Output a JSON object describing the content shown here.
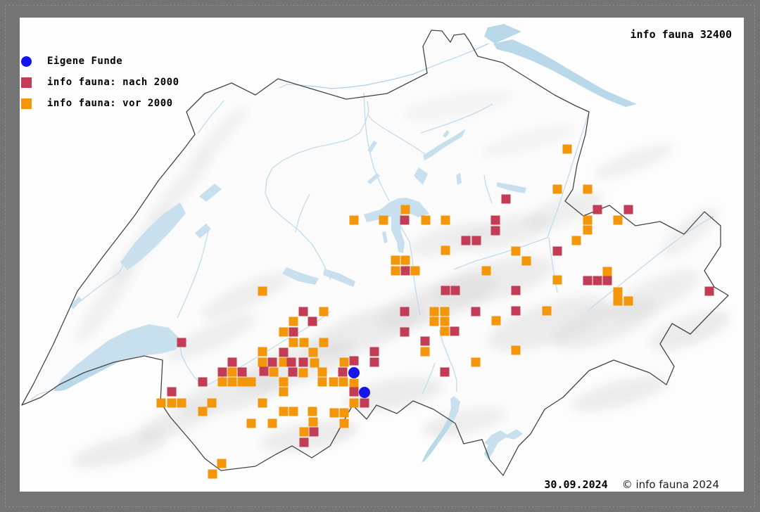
{
  "title": {
    "catalog_label": "info fauna 32400"
  },
  "legend": {
    "items": [
      {
        "label": "Eigene Funde",
        "color": "#1414eb",
        "shape": "circle"
      },
      {
        "label": "info fauna: nach 2000",
        "color": "#c23c55",
        "shape": "square"
      },
      {
        "label": "info fauna: vor 2000",
        "color": "#f4960a",
        "shape": "square"
      }
    ]
  },
  "footer": {
    "date": "30.09.2024",
    "copyright": "© info fauna 2024"
  },
  "map": {
    "region": "Switzerland",
    "frame_color": "#747474",
    "canvas_color": "#fdfdfd",
    "lake_color": "#b9d9ea",
    "river_color": "#aed2e8",
    "border_color": "#454545",
    "relief_color": "#d2d2d2"
  },
  "chart_data": {
    "type": "scatter",
    "title": "info fauna 32400 — species distribution map of Switzerland",
    "coordinate_system": "screen pixels of 1080x728 screenshot, origin top-left",
    "marker_size_px": 13,
    "circle_radius_px": 8,
    "series": [
      {
        "name": "Eigene Funde",
        "key": "eigene-funde",
        "shape": "circle",
        "color": "#1414eb",
        "points": [
          [
            503,
            530
          ],
          [
            518,
            558
          ]
        ]
      },
      {
        "name": "info fauna: nach 2000",
        "key": "nach-2000",
        "shape": "square",
        "color": "#c23c55",
        "points": [
          [
            575,
            313
          ],
          [
            704,
            313
          ],
          [
            704,
            328
          ],
          [
            662,
            342
          ],
          [
            677,
            342
          ],
          [
            576,
            385
          ],
          [
            719,
            283
          ],
          [
            849,
            298
          ],
          [
            893,
            298
          ],
          [
            792,
            357
          ],
          [
            633,
            413
          ],
          [
            647,
            413
          ],
          [
            733,
            413
          ],
          [
            431,
            443
          ],
          [
            575,
            443
          ],
          [
            676,
            443
          ],
          [
            733,
            442
          ],
          [
            444,
            457
          ],
          [
            417,
            472
          ],
          [
            575,
            472
          ],
          [
            646,
            471
          ],
          [
            604,
            485
          ],
          [
            258,
            487
          ],
          [
            403,
            501
          ],
          [
            532,
            500
          ],
          [
            503,
            513
          ],
          [
            532,
            515
          ],
          [
            330,
            515
          ],
          [
            387,
            515
          ],
          [
            414,
            515
          ],
          [
            431,
            515
          ],
          [
            316,
            529
          ],
          [
            344,
            529
          ],
          [
            375,
            528
          ],
          [
            416,
            529
          ],
          [
            487,
            529
          ],
          [
            632,
            529
          ],
          [
            288,
            543
          ],
          [
            244,
            557
          ],
          [
            503,
            557
          ],
          [
            518,
            573
          ],
          [
            446,
            614
          ],
          [
            432,
            629
          ],
          [
            835,
            399
          ],
          [
            849,
            399
          ],
          [
            863,
            399
          ],
          [
            1008,
            414
          ]
        ]
      },
      {
        "name": "info fauna: vor 2000",
        "key": "vor-2000",
        "shape": "square",
        "color": "#f4960a",
        "points": [
          [
            503,
            313
          ],
          [
            545,
            313
          ],
          [
            576,
            298
          ],
          [
            605,
            313
          ],
          [
            633,
            313
          ],
          [
            633,
            356
          ],
          [
            562,
            370
          ],
          [
            576,
            370
          ],
          [
            562,
            385
          ],
          [
            590,
            385
          ],
          [
            691,
            385
          ],
          [
            373,
            414
          ],
          [
            806,
            212
          ],
          [
            792,
            269
          ],
          [
            835,
            269
          ],
          [
            835,
            313
          ],
          [
            878,
            313
          ],
          [
            835,
            327
          ],
          [
            819,
            342
          ],
          [
            733,
            357
          ],
          [
            748,
            371
          ],
          [
            863,
            386
          ],
          [
            792,
            398
          ],
          [
            878,
            415
          ],
          [
            878,
            428
          ],
          [
            893,
            428
          ],
          [
            460,
            443
          ],
          [
            617,
            443
          ],
          [
            632,
            443
          ],
          [
            417,
            457
          ],
          [
            617,
            457
          ],
          [
            632,
            457
          ],
          [
            403,
            472
          ],
          [
            632,
            471
          ],
          [
            417,
            487
          ],
          [
            432,
            487
          ],
          [
            460,
            487
          ],
          [
            373,
            500
          ],
          [
            445,
            501
          ],
          [
            604,
            500
          ],
          [
            373,
            515
          ],
          [
            403,
            515
          ],
          [
            447,
            516
          ],
          [
            489,
            515
          ],
          [
            705,
            456
          ],
          [
            733,
            498
          ],
          [
            777,
            442
          ],
          [
            676,
            515
          ],
          [
            330,
            529
          ],
          [
            389,
            529
          ],
          [
            431,
            530
          ],
          [
            458,
            529
          ],
          [
            316,
            543
          ],
          [
            330,
            543
          ],
          [
            344,
            543
          ],
          [
            357,
            543
          ],
          [
            403,
            543
          ],
          [
            458,
            543
          ],
          [
            474,
            543
          ],
          [
            488,
            543
          ],
          [
            503,
            545
          ],
          [
            403,
            557
          ],
          [
            229,
            573
          ],
          [
            244,
            573
          ],
          [
            258,
            573
          ],
          [
            301,
            573
          ],
          [
            373,
            573
          ],
          [
            503,
            573
          ],
          [
            288,
            585
          ],
          [
            403,
            585
          ],
          [
            417,
            585
          ],
          [
            444,
            585
          ],
          [
            475,
            587
          ],
          [
            489,
            587
          ],
          [
            445,
            600
          ],
          [
            357,
            602
          ],
          [
            387,
            602
          ],
          [
            489,
            602
          ],
          [
            432,
            614
          ],
          [
            315,
            659
          ],
          [
            302,
            674
          ]
        ]
      }
    ]
  }
}
